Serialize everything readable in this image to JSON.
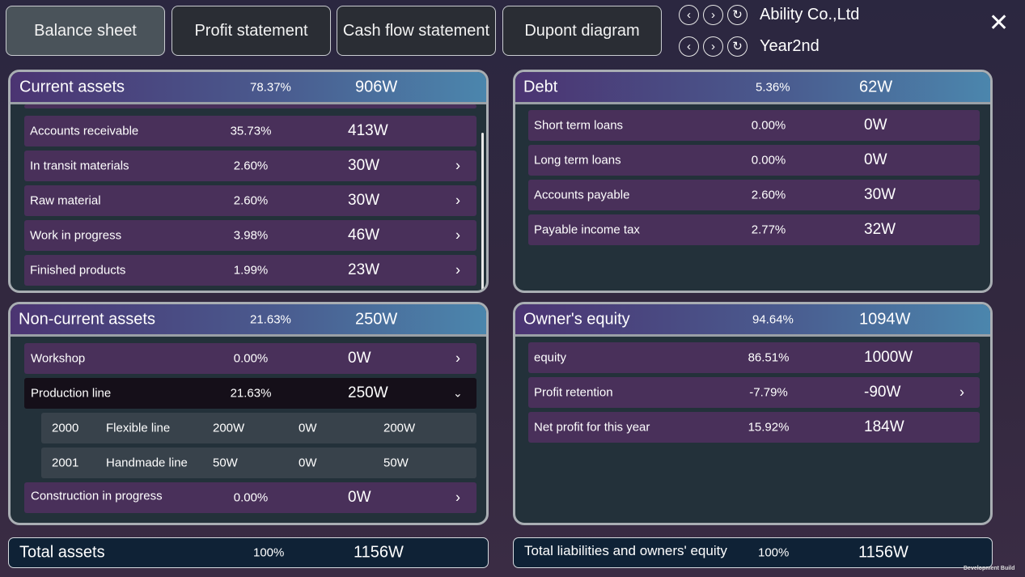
{
  "tabs": [
    "Balance sheet",
    "Profit statement",
    "Cash flow statement",
    "Dupont diagram"
  ],
  "active_tab": "Balance sheet",
  "company": "Ability Co.,Ltd",
  "year": "Year2nd",
  "current_assets": {
    "title": "Current assets",
    "pct": "78.37%",
    "value": "906W",
    "rows": [
      {
        "label": "Accounts receivable",
        "pct": "35.73%",
        "value": "413W",
        "chevron": false
      },
      {
        "label": "In transit materials",
        "pct": "2.60%",
        "value": "30W",
        "chevron": true
      },
      {
        "label": "Raw material",
        "pct": "2.60%",
        "value": "30W",
        "chevron": true
      },
      {
        "label": "Work in progress",
        "pct": "3.98%",
        "value": "46W",
        "chevron": true
      },
      {
        "label": "Finished products",
        "pct": "1.99%",
        "value": "23W",
        "chevron": true
      }
    ]
  },
  "noncurrent_assets": {
    "title": "Non-current assets",
    "pct": "21.63%",
    "value": "250W",
    "workshop": {
      "label": "Workshop",
      "pct": "0.00%",
      "value": "0W"
    },
    "production_line": {
      "label": "Production line",
      "pct": "21.63%",
      "value": "250W",
      "expanded": true
    },
    "lines": [
      {
        "id": "2000",
        "name": "Flexible line",
        "a": "200W",
        "b": "0W",
        "c": "200W"
      },
      {
        "id": "2001",
        "name": "Handmade line",
        "a": "50W",
        "b": "0W",
        "c": "50W"
      }
    ],
    "construction": {
      "label": "Construction in progress",
      "pct": "0.00%",
      "value": "0W"
    }
  },
  "debt": {
    "title": "Debt",
    "pct": "5.36%",
    "value": "62W",
    "rows": [
      {
        "label": "Short term loans",
        "pct": "0.00%",
        "value": "0W"
      },
      {
        "label": "Long term loans",
        "pct": "0.00%",
        "value": "0W"
      },
      {
        "label": "Accounts payable",
        "pct": "2.60%",
        "value": "30W"
      },
      {
        "label": "Payable income tax",
        "pct": "2.77%",
        "value": "32W"
      }
    ]
  },
  "equity": {
    "title": "Owner's equity",
    "pct": "94.64%",
    "value": "1094W",
    "rows": [
      {
        "label": "equity",
        "pct": "86.51%",
        "value": "1000W"
      },
      {
        "label": "Profit retention",
        "pct": "-7.79%",
        "value": "-90W"
      },
      {
        "label": "Net profit for this year",
        "pct": "15.92%",
        "value": "184W"
      }
    ]
  },
  "total_assets": {
    "label": "Total assets",
    "pct": "100%",
    "value": "1156W"
  },
  "total_liabilities": {
    "label": "Total liabilities and owners' equity",
    "pct": "100%",
    "value": "1156W"
  },
  "footer": "Development Build"
}
